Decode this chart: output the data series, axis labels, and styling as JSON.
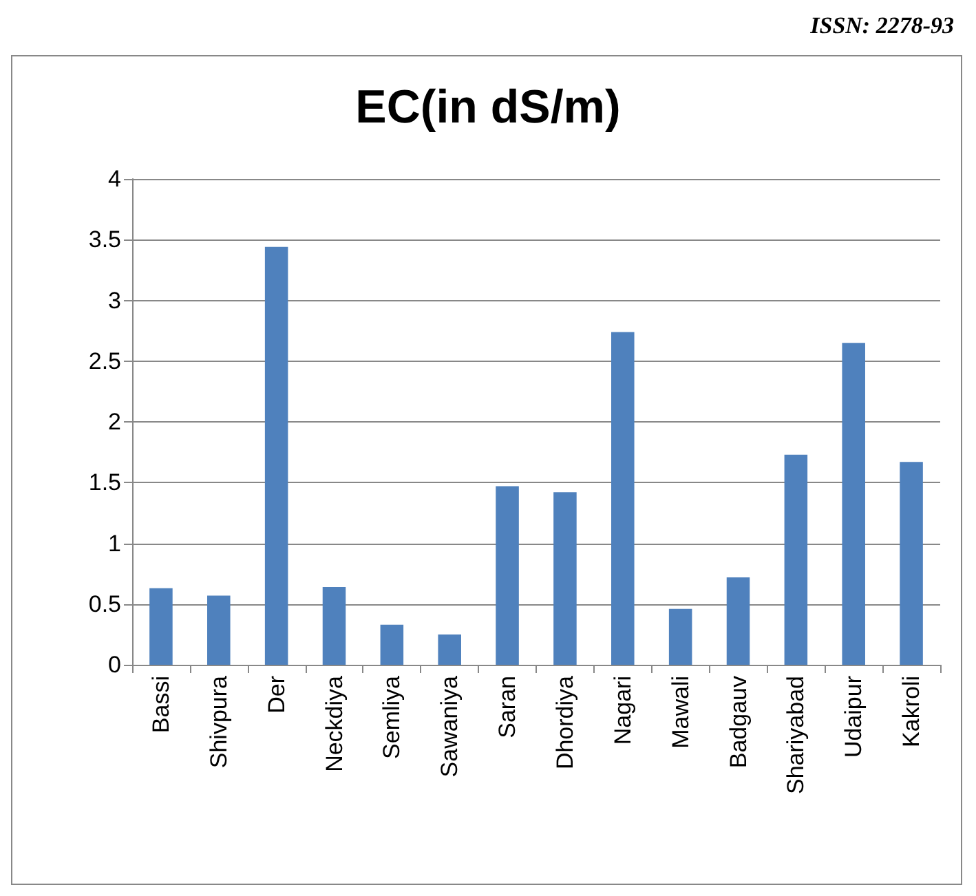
{
  "chart_data": {
    "type": "bar",
    "title": "EC(in dS/m)",
    "categories": [
      "Bassi",
      "Shivpura",
      "Der",
      "Neckdiya",
      "Semliya",
      "Sawaniya",
      "Saran",
      "Dhordiya",
      "Nagari",
      "Mawali",
      "Badgauv",
      "Shariyabad",
      "Udaipur",
      "Kakroli"
    ],
    "values": [
      0.63,
      0.57,
      3.44,
      0.64,
      0.33,
      0.25,
      1.47,
      1.42,
      2.74,
      0.46,
      0.72,
      1.73,
      2.65,
      1.67
    ],
    "color": "#4f81bd",
    "ylim": [
      0,
      4
    ],
    "yticks": [
      0,
      0.5,
      1,
      1.5,
      2,
      2.5,
      3,
      3.5,
      4
    ],
    "grid": "y",
    "annotations": [
      "ISSN: 2278-93"
    ]
  }
}
